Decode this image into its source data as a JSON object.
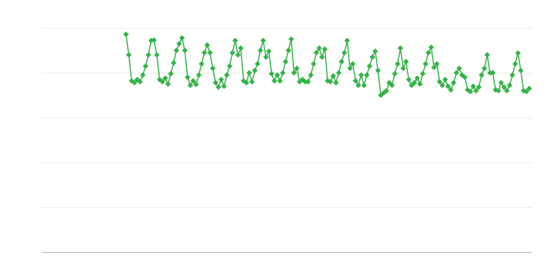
{
  "chart_data": {
    "type": "line",
    "title": "",
    "xlabel": "",
    "ylabel": "",
    "ylim": [
      0,
      5
    ],
    "xlim": [
      -30,
      145
    ],
    "grid": true,
    "gridlines_y": [
      1,
      2,
      3,
      4,
      5
    ],
    "legend": "none",
    "marker": "diamond",
    "color": "#35b34a",
    "series": [
      {
        "values": [
          4.86,
          4.4,
          3.82,
          3.78,
          3.85,
          3.8,
          3.95,
          4.15,
          4.4,
          4.72,
          4.73,
          4.4,
          3.85,
          3.8,
          3.88,
          3.75,
          3.98,
          4.22,
          4.5,
          4.65,
          4.78,
          4.5,
          3.9,
          3.72,
          3.82,
          3.74,
          3.95,
          4.2,
          4.45,
          4.62,
          4.45,
          4.1,
          3.78,
          3.68,
          3.85,
          3.7,
          3.95,
          4.15,
          4.45,
          4.72,
          4.4,
          4.55,
          3.82,
          3.78,
          4.0,
          3.8,
          4.05,
          4.2,
          4.5,
          4.72,
          4.35,
          4.48,
          3.98,
          3.82,
          3.95,
          3.82,
          4.0,
          4.25,
          4.5,
          4.75,
          4.0,
          4.1,
          3.8,
          3.85,
          3.8,
          3.8,
          3.95,
          4.2,
          4.45,
          4.55,
          4.35,
          4.53,
          3.82,
          3.8,
          3.93,
          3.78,
          4.0,
          4.25,
          4.45,
          4.72,
          4.1,
          4.2,
          3.82,
          3.72,
          3.95,
          3.72,
          3.95,
          4.15,
          4.35,
          4.48,
          4.05,
          3.5,
          3.55,
          3.6,
          3.78,
          3.72,
          3.98,
          4.2,
          4.55,
          4.1,
          4.25,
          3.85,
          3.72,
          3.78,
          3.88,
          3.75,
          3.98,
          4.2,
          4.45,
          4.57,
          4.12,
          4.2,
          3.8,
          3.72,
          3.85,
          3.7,
          3.62,
          3.78,
          4.0,
          4.1,
          3.95,
          3.9,
          3.62,
          3.58,
          3.7,
          3.6,
          3.68,
          3.95,
          4.1,
          4.4,
          4.0,
          4.0,
          3.62,
          3.6,
          3.78,
          3.68,
          3.6,
          3.72,
          3.95,
          4.2,
          4.44,
          4.05,
          3.6,
          3.58,
          3.65
        ]
      }
    ]
  }
}
